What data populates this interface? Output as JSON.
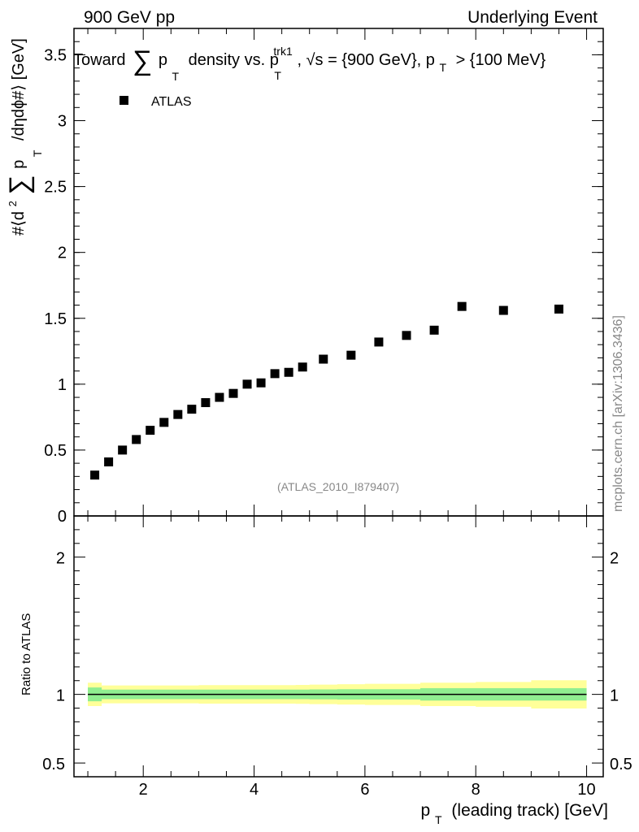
{
  "header": {
    "left": "900 GeV pp",
    "right": "Underlying Event"
  },
  "side_label": "mcplots.cern.ch [arXiv:1306.3436]",
  "chart_data": [
    {
      "type": "scatter",
      "panel": "main",
      "title": {
        "pre": "Toward",
        "sum": "∑",
        "p": "p",
        "psub": "T",
        "mid": "density vs. p",
        "trk_sup": "trk1",
        "trk_sub": "T",
        "energy": ", √s = {900 GeV}, p",
        "cut_sub": "T",
        "cut": "> {100 MeV}"
      },
      "ylabel": {
        "pre": "#⟨d",
        "sup": "2",
        "sum": "∑",
        "p": "p",
        "psub": "T",
        "post": "/dηdϕ#⟩ [GeV]"
      },
      "legend": {
        "entries": [
          "ATLAS"
        ],
        "placement": "top-left"
      },
      "annotation": "(ATLAS_2010_I879407)",
      "xlim": [
        0.75,
        10.3
      ],
      "ylim": [
        0,
        3.7
      ],
      "xticks": [
        2,
        4,
        6,
        8,
        10
      ],
      "yticks": [
        0,
        0.5,
        1,
        1.5,
        2,
        2.5,
        3,
        3.5
      ],
      "ytick_labels": [
        "0",
        "0.5",
        "1",
        "1.5",
        "2",
        "2.5",
        "3",
        "3.5"
      ],
      "series": [
        {
          "name": "ATLAS",
          "color": "#000000",
          "marker": "square",
          "x": [
            1.125,
            1.375,
            1.625,
            1.875,
            2.125,
            2.375,
            2.625,
            2.875,
            3.125,
            3.375,
            3.625,
            3.875,
            4.125,
            4.375,
            4.625,
            4.875,
            5.25,
            5.75,
            6.25,
            6.75,
            7.25,
            7.75,
            8.5,
            9.5
          ],
          "y": [
            0.31,
            0.41,
            0.5,
            0.58,
            0.65,
            0.71,
            0.77,
            0.81,
            0.86,
            0.9,
            0.93,
            1.0,
            1.01,
            1.08,
            1.09,
            1.13,
            1.19,
            1.22,
            1.32,
            1.37,
            1.41,
            1.59,
            1.56,
            1.57
          ]
        }
      ]
    },
    {
      "type": "area",
      "panel": "ratio",
      "ylabel": "Ratio to ATLAS",
      "xlabel": {
        "p": "p",
        "psub": "T",
        "rest": "(leading track) [GeV]"
      },
      "xlim": [
        0.75,
        10.3
      ],
      "ylim": [
        0.4,
        2.3
      ],
      "xticks": [
        2,
        4,
        6,
        8,
        10
      ],
      "xtick_labels": [
        "2",
        "4",
        "6",
        "8",
        "10"
      ],
      "yticks": [
        0.5,
        1,
        2
      ],
      "ytick_labels": [
        "0.5",
        "1",
        "2"
      ],
      "reference_line": 1,
      "bin_edges": [
        1.0,
        1.25,
        1.5,
        1.75,
        2.0,
        2.25,
        2.5,
        2.75,
        3.0,
        3.25,
        3.5,
        3.75,
        4.0,
        4.25,
        4.5,
        4.75,
        5.0,
        5.5,
        6.0,
        6.5,
        7.0,
        7.5,
        8.0,
        9.0,
        10.0
      ],
      "bands": [
        {
          "name": "stat",
          "color": "#90ee90",
          "low": [
            0.95,
            0.965,
            0.965,
            0.965,
            0.965,
            0.965,
            0.965,
            0.965,
            0.965,
            0.965,
            0.965,
            0.965,
            0.965,
            0.965,
            0.965,
            0.965,
            0.964,
            0.962,
            0.962,
            0.962,
            0.955,
            0.955,
            0.955,
            0.955
          ],
          "high": [
            1.05,
            1.035,
            1.035,
            1.035,
            1.035,
            1.035,
            1.035,
            1.035,
            1.035,
            1.035,
            1.035,
            1.035,
            1.035,
            1.035,
            1.035,
            1.035,
            1.036,
            1.038,
            1.038,
            1.038,
            1.045,
            1.045,
            1.045,
            1.045
          ]
        },
        {
          "name": "total",
          "color": "#ffff99",
          "low": [
            0.915,
            0.935,
            0.935,
            0.935,
            0.935,
            0.935,
            0.935,
            0.935,
            0.933,
            0.933,
            0.933,
            0.933,
            0.933,
            0.933,
            0.933,
            0.931,
            0.929,
            0.926,
            0.923,
            0.923,
            0.915,
            0.915,
            0.91,
            0.897
          ],
          "high": [
            1.085,
            1.065,
            1.065,
            1.065,
            1.065,
            1.065,
            1.065,
            1.065,
            1.067,
            1.067,
            1.067,
            1.067,
            1.067,
            1.067,
            1.067,
            1.069,
            1.071,
            1.074,
            1.077,
            1.077,
            1.085,
            1.085,
            1.09,
            1.103
          ]
        }
      ]
    }
  ]
}
